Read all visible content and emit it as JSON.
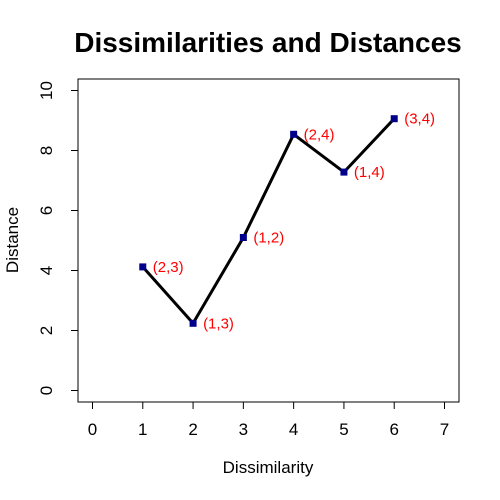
{
  "chart_data": {
    "type": "line",
    "title": "Dissimilarities and Distances",
    "xlabel": "Dissimilarity",
    "ylabel": "Distance",
    "xlim": [
      0,
      7
    ],
    "ylim": [
      0,
      10
    ],
    "xticks": [
      0,
      1,
      2,
      3,
      4,
      5,
      6,
      7
    ],
    "yticks": [
      0,
      2,
      4,
      6,
      8,
      10
    ],
    "grid": false,
    "points": [
      {
        "x": 1,
        "y": 4.12,
        "label": "(2,3)"
      },
      {
        "x": 2,
        "y": 2.24,
        "label": "(1,3)"
      },
      {
        "x": 3,
        "y": 5.1,
        "label": "(1,2)"
      },
      {
        "x": 4,
        "y": 8.54,
        "label": "(2,4)"
      },
      {
        "x": 5,
        "y": 7.28,
        "label": "(1,4)"
      },
      {
        "x": 6,
        "y": 9.06,
        "label": "(3,4)"
      }
    ],
    "line_color": "#000000",
    "marker_color": "#00008b",
    "label_color": "#ff0000"
  }
}
